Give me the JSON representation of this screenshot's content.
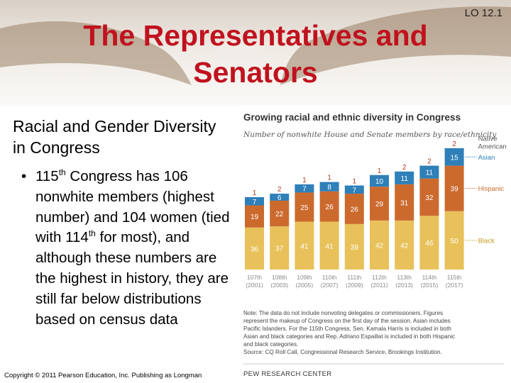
{
  "slide": {
    "title": "The Representatives and Senators",
    "lo": "LO 12.1",
    "subheading": "Racial and Gender Diversity in Congress",
    "bullet": {
      "glyph": "•",
      "part1": "115",
      "sup1": "th",
      "part2": " Congress has 106 nonwhite members (highest number) and 104 women (tied with 114",
      "sup2": "th",
      "part3": " for most), and although these numbers are the highest in history, they are still far below distributions based on census data"
    },
    "copyright": "Copyright © 2011 Pearson Education, Inc. Publishing as Longman"
  },
  "chart_data": {
    "type": "bar",
    "stacked": true,
    "title": "Growing racial and ethnic diversity in Congress",
    "subtitle": "Number of nonwhite House and Senate members by race/ethnicity",
    "categories": [
      "107th (2001)",
      "108th (2003)",
      "109th (2005)",
      "110th (2007)",
      "111th (2009)",
      "112th (2011)",
      "113th (2013)",
      "114th (2015)",
      "115th (2017)"
    ],
    "congress_labels": [
      "107th",
      "108th",
      "109th",
      "110th",
      "111th",
      "112th",
      "113th",
      "114th",
      "115th"
    ],
    "year_labels": [
      "(2001)",
      "(2003)",
      "(2005)",
      "(2007)",
      "(2009)",
      "(2011)",
      "(2013)",
      "(2015)",
      "(2017)"
    ],
    "series": [
      {
        "name": "Black",
        "color": "#e8c15a",
        "values": [
          36,
          37,
          41,
          41,
          39,
          42,
          42,
          46,
          50
        ]
      },
      {
        "name": "Hispanic",
        "color": "#cc6a2e",
        "values": [
          19,
          22,
          25,
          26,
          26,
          29,
          31,
          32,
          39
        ]
      },
      {
        "name": "Asian",
        "color": "#2f7fb8",
        "values": [
          7,
          6,
          7,
          8,
          7,
          10,
          11,
          11,
          15
        ]
      },
      {
        "name": "Native American",
        "color": "#ffffff",
        "values": [
          1,
          2,
          1,
          1,
          1,
          1,
          2,
          2,
          2
        ]
      }
    ],
    "legend_labels": {
      "native_line1": "Native",
      "native_line2": "American",
      "asian": "Asian",
      "hispanic": "Hispanic",
      "black": "Black"
    },
    "note": [
      "Note: The data do not include nonvoting delegates or commissioners. Figures",
      "represent the makeup of Congress on the first day of the session. Asian includes",
      "Pacific Islanders. For the 115th Congress, Sen. Kamala Harris is included in both",
      "Asian and black categories and Rep. Adriano Espaillat is included in both Hispanic",
      "and black categories."
    ],
    "source": "Source: CQ Roll Call, Congressional Research Service, Brookings Institution.",
    "branding": "PEW RESEARCH CENTER"
  }
}
